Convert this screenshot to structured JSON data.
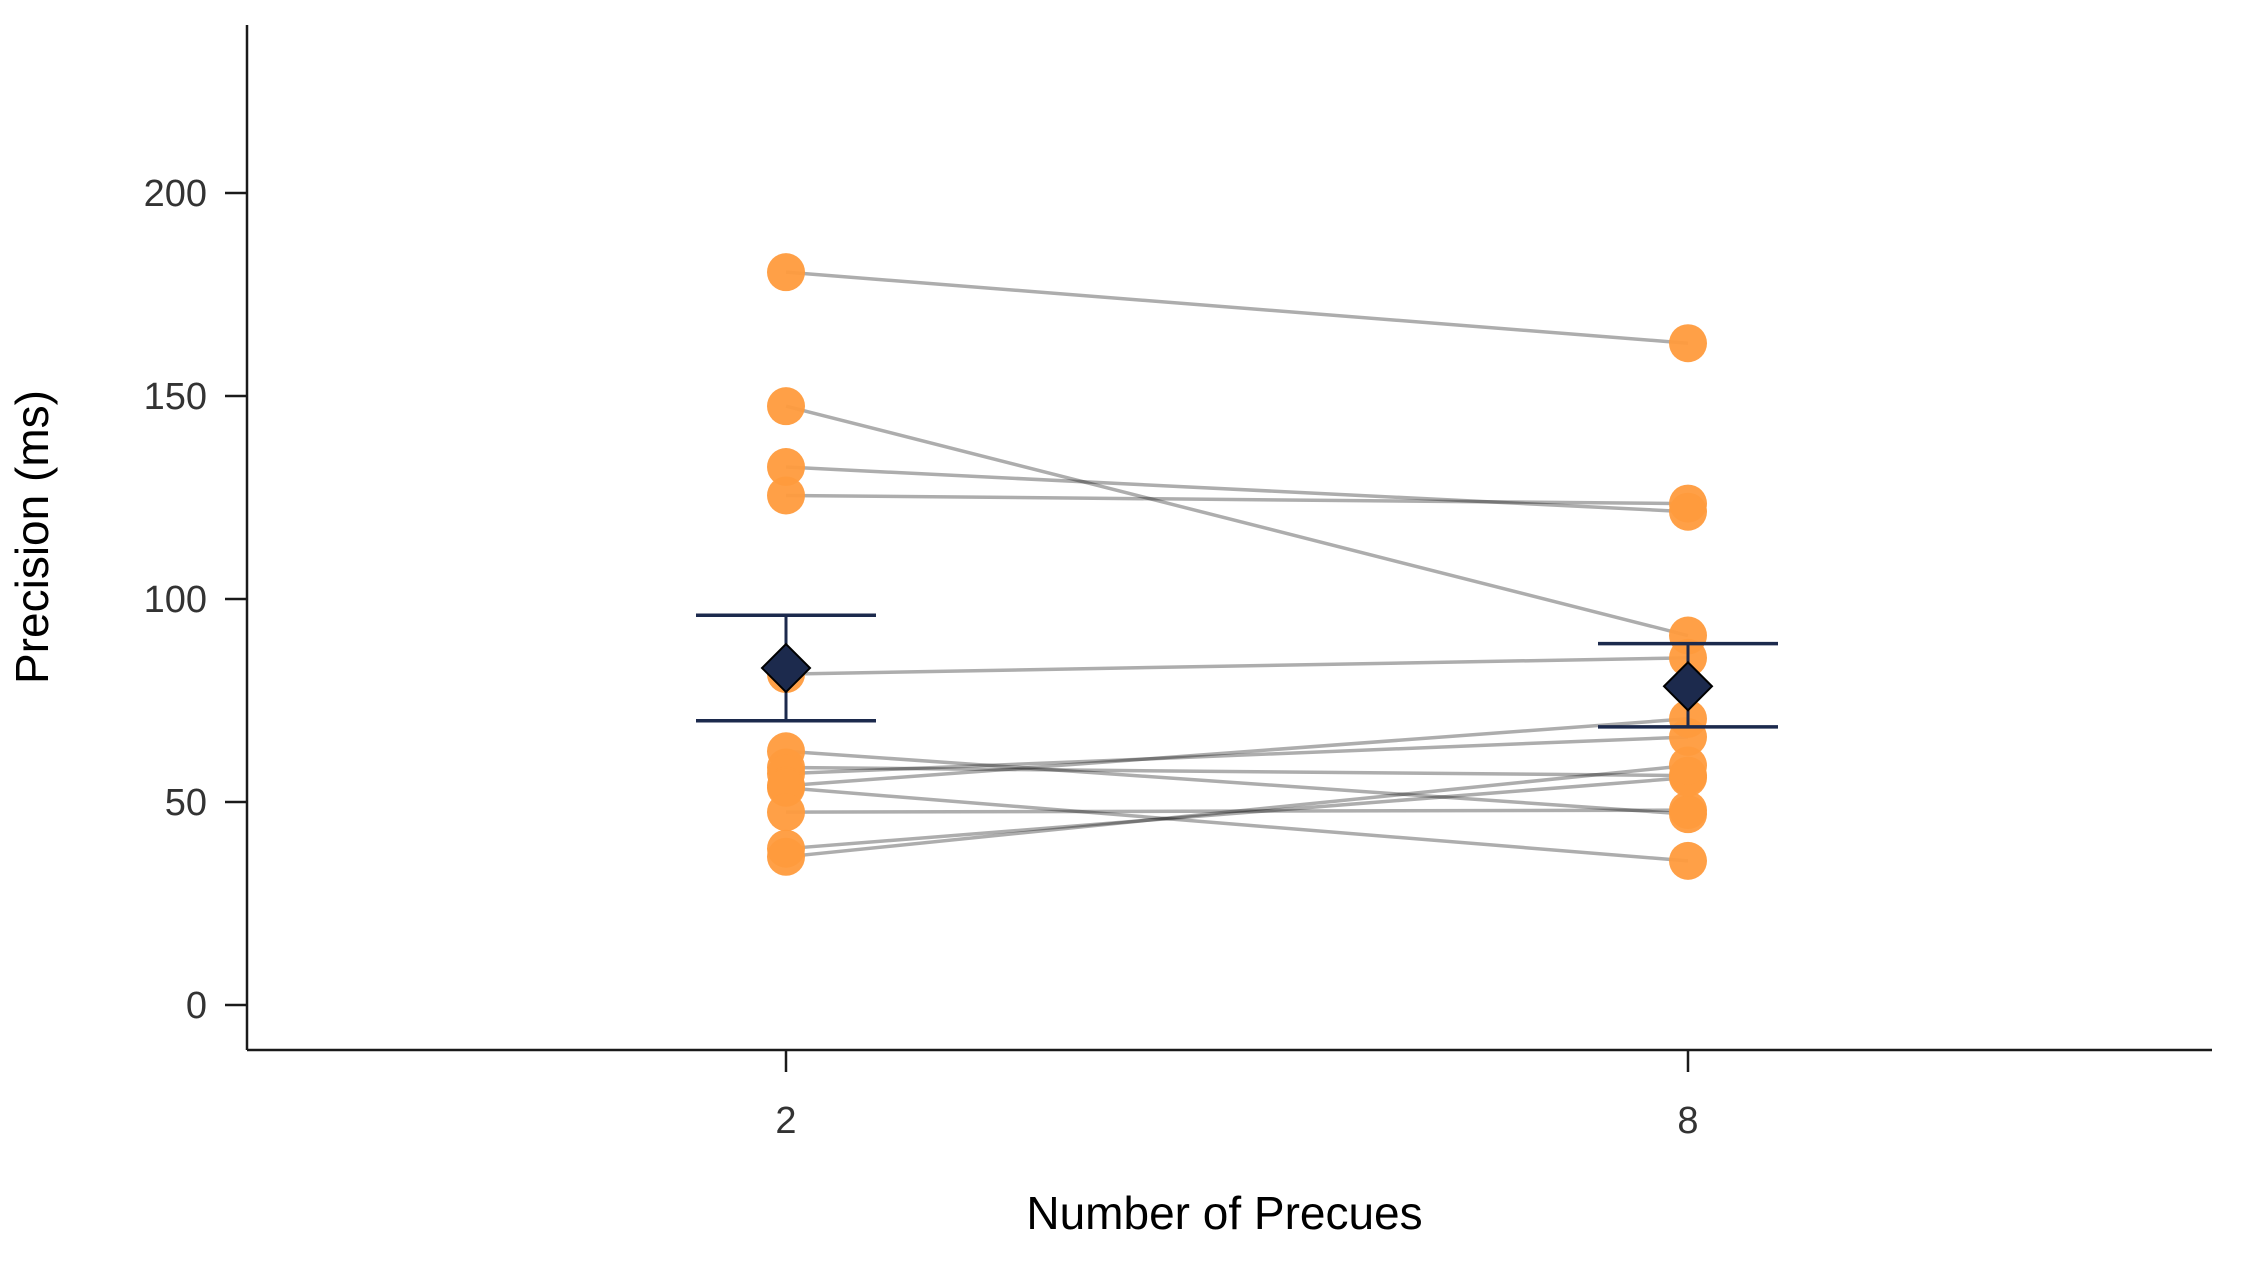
{
  "chart_data": {
    "type": "scatter",
    "xlabel": "Number of Precues",
    "ylabel": "Precision (ms)",
    "categories": [
      "2",
      "8"
    ],
    "yticks": [
      0,
      50,
      100,
      150,
      200
    ],
    "ylim": [
      -11,
      240
    ],
    "grid": false,
    "legend": "none",
    "colors": {
      "points": "#FF9B3D",
      "lines": "#A6A6A6",
      "mean": "#1C2A4D",
      "axis": "#1a1a1a"
    },
    "participants": [
      {
        "values": [
          180.5,
          163
        ]
      },
      {
        "values": [
          147.5,
          91
        ]
      },
      {
        "values": [
          132.5,
          121.5
        ]
      },
      {
        "values": [
          125.5,
          123.5
        ]
      },
      {
        "values": [
          81.5,
          85.5
        ]
      },
      {
        "values": [
          62.5,
          47
        ]
      },
      {
        "values": [
          58.5,
          56.5
        ]
      },
      {
        "values": [
          57,
          66
        ]
      },
      {
        "values": [
          54,
          70.5
        ]
      },
      {
        "values": [
          53.5,
          35.5
        ]
      },
      {
        "values": [
          47.5,
          48
        ]
      },
      {
        "values": [
          38.5,
          56
        ]
      },
      {
        "values": [
          36.5,
          59
        ]
      }
    ],
    "means": [
      {
        "category": "2",
        "mean": 83,
        "lower": 70,
        "upper": 96
      },
      {
        "category": "8",
        "mean": 78.5,
        "lower": 68.5,
        "upper": 89
      }
    ]
  }
}
